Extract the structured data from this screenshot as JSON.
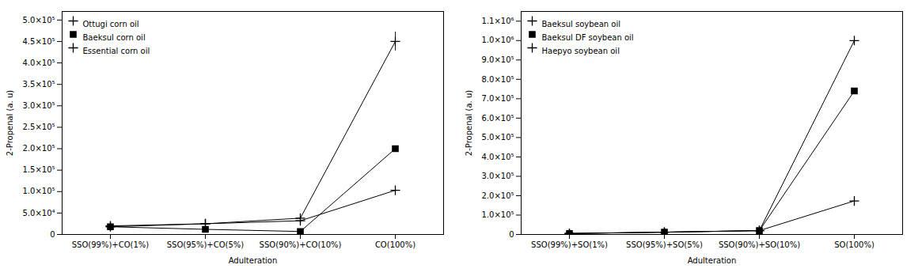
{
  "chart_data": [
    {
      "type": "line",
      "xlabel": "Adulteration",
      "ylabel": "2-Propenal (a. u)",
      "categories": [
        "SSO(99%)+CO(1%)",
        "SSO(95%)+CO(5%)",
        "SSO(90%)+CO(10%)",
        "CO(100%)"
      ],
      "series": [
        {
          "name": "Ottugi corn oil",
          "color": "black",
          "marker": "plus",
          "values": [
            20000,
            25000,
            38000,
            450000
          ],
          "errors": [
            2000,
            3000,
            4000,
            22000
          ]
        },
        {
          "name": "Baeksul corn oil",
          "color": "black",
          "marker": "square",
          "values": [
            18000,
            12000,
            7000,
            200000
          ],
          "errors": [
            1500,
            1200,
            800,
            3000
          ]
        },
        {
          "name": "Essential corn oil",
          "color": "black",
          "marker": "plus",
          "values": [
            18000,
            25000,
            32000,
            103000
          ],
          "errors": [
            1500,
            2500,
            3000,
            4000
          ]
        }
      ],
      "ylim": [
        0,
        520000
      ],
      "yticks": [
        0,
        {
          "value": 50000,
          "label": "5.0×10⁴"
        },
        {
          "value": 100000,
          "label": "1.0×10⁵"
        },
        {
          "value": 150000,
          "label": "1.5×10⁵"
        },
        {
          "value": 200000,
          "label": "2.0×10⁵"
        },
        {
          "value": 250000,
          "label": "2.5×10⁵"
        },
        {
          "value": 300000,
          "label": "3.0×10⁵"
        },
        {
          "value": 350000,
          "label": "3.5×10⁵"
        },
        {
          "value": 400000,
          "label": "4.0×10⁵"
        },
        {
          "value": 450000,
          "label": "4.5×10⁵"
        },
        {
          "value": 500000,
          "label": "5.0×10⁵"
        }
      ],
      "legend": "upper left"
    },
    {
      "type": "line",
      "xlabel": "Adulteration",
      "ylabel": "2-Propenal (a. u)",
      "categories": [
        "SSO(99%)+SO(1%)",
        "SSO(95%)+SO(5%)",
        "SSO(90%)+SO(10%)",
        "SO(100%)"
      ],
      "series": [
        {
          "name": "Baeksul soybean oil",
          "color": "black",
          "marker": "plus",
          "values": [
            5000,
            12000,
            20000,
            1000000
          ],
          "errors": [
            500,
            1000,
            2000,
            8000
          ]
        },
        {
          "name": "Baeksul DF soybean oil",
          "color": "black",
          "marker": "square",
          "values": [
            5000,
            12000,
            20000,
            740000
          ],
          "errors": [
            500,
            1000,
            2000,
            8000
          ]
        },
        {
          "name": "Haepyo soybean oil",
          "color": "black",
          "marker": "plus",
          "values": [
            5000,
            12000,
            20000,
            173000
          ],
          "errors": [
            500,
            1000,
            2000,
            6000
          ]
        }
      ],
      "ylim": [
        0,
        1150000
      ],
      "yticks": [
        0,
        {
          "value": 100000,
          "label": "1.0×10⁵"
        },
        {
          "value": 200000,
          "label": "2.0×10⁵"
        },
        {
          "value": 300000,
          "label": "3.0×10⁵"
        },
        {
          "value": 400000,
          "label": "4.0×10⁵"
        },
        {
          "value": 500000,
          "label": "5.0×10⁵"
        },
        {
          "value": 600000,
          "label": "6.0×10⁵"
        },
        {
          "value": 700000,
          "label": "7.0×10⁵"
        },
        {
          "value": 800000,
          "label": "8.0×10⁵"
        },
        {
          "value": 900000,
          "label": "9.0×10⁵"
        },
        {
          "value": 1000000,
          "label": "1.0×10⁶"
        },
        {
          "value": 1100000,
          "label": "1.1×10⁶"
        }
      ],
      "legend": "upper left"
    }
  ]
}
